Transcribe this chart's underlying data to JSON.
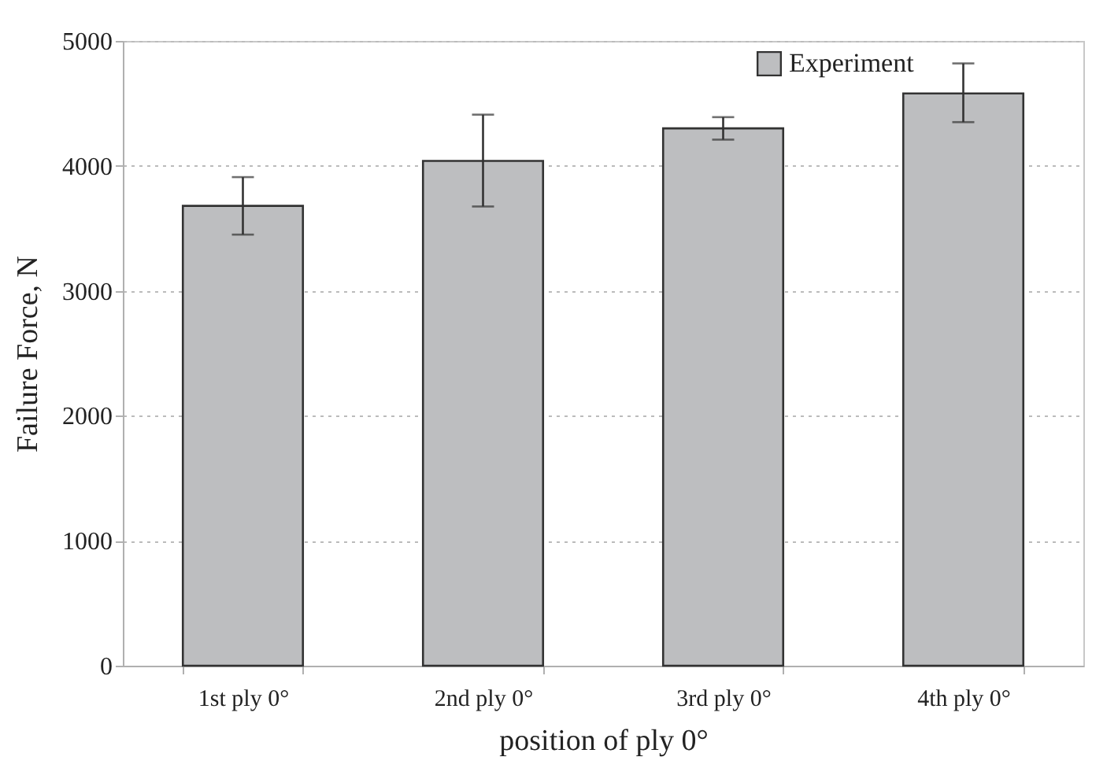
{
  "chart_data": {
    "type": "bar",
    "xlabel": "position of  ply 0°",
    "ylabel": "Failure Force, N",
    "categories": [
      "1st ply 0°",
      "2nd ply 0°",
      "3rd ply 0°",
      "4th ply 0°"
    ],
    "series": [
      {
        "name": "Experiment",
        "color": "#bdbec0",
        "values": [
          3680,
          4040,
          4300,
          4580
        ],
        "errors": [
          [
            3450,
            3910
          ],
          [
            3675,
            4410
          ],
          [
            4210,
            4390
          ],
          [
            4350,
            4820
          ]
        ]
      }
    ],
    "ylim": [
      0,
      5000
    ],
    "yticks": [
      0,
      1000,
      2000,
      3000,
      4000,
      5000
    ],
    "grid": "y",
    "legend": "top right"
  }
}
